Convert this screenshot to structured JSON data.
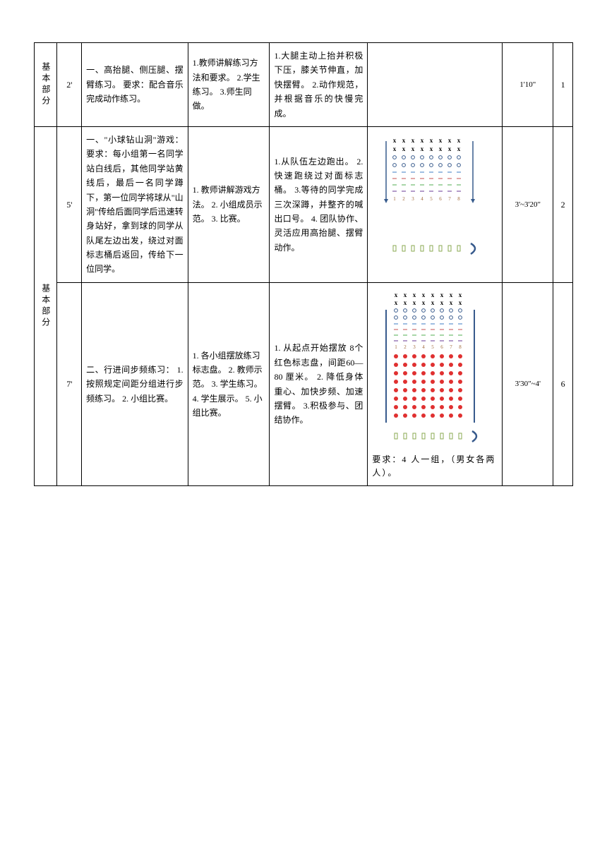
{
  "rows": [
    {
      "label": "基本部分",
      "time": "2'",
      "content": "一、高抬腿、侧压腿、摆臂练习。\n要求：配合音乐完成动作练习。",
      "method": "1.教师讲解练习方法和要求。\n2.学生练习。\n3.师生同做。",
      "requirement": "1.大腿主动上抬并积极下压，膝关节伸直，加快摆臂。\n2.动作规范，并根据音乐的快慢完成。",
      "diagram_note": "",
      "duration": "1'10\"",
      "count": "1"
    },
    {
      "label": "基本部分",
      "time": "5'",
      "content": "一、\"小球钻山洞\"游戏：\n要求：每小组第一名同学站白线后，其他同学站黄线后，最后一名同学蹲下，第一位同学将球从\"山洞\"传给后面同学后迅速转身站好，拿到球的同学从队尾左边出发，绕过对面标志桶后返回，传给下一位同学。",
      "method": "1. 教师讲解游戏方法。\n2. 小组成员示范。\n3. 比赛。",
      "requirement": "1.从队伍左边跑出。\n2.快速跑绕过对面标志桶。\n3.等待的同学完成三次深蹲，并整齐的喊出口号。\n4. 团队协作、灵活应用高抬腿、摆臂动作。",
      "diagram_note": "",
      "duration": "3'~3'20\"",
      "count": "2"
    },
    {
      "label": "",
      "time": "7'",
      "content": "二、行进间步频练习：\n1. 按照规定间距分组进行步频练习。\n2. 小组比赛。",
      "method": "1. 各小组摆放练习标志盘。\n2. 教师示范。\n3. 学生练习。\n4. 学生展示。\n5. 小组比赛。",
      "requirement": "1. 从起点开始摆放 8个红色标志盘，间距60—80 厘米。\n2. 降低身体重心、加快步频、加速摆臂。\n3.积极参与、团结协作。",
      "diagram_note": "要求：4 人一组，（男女各两人）。",
      "duration": "3'30\"~4'",
      "count": "6"
    }
  ],
  "diagrams": {
    "d2": {
      "x_color": "#000000",
      "o_color": "#375a8c",
      "dash_colors": [
        "#7da8d8",
        "#d88a8a",
        "#8ac98a",
        "#9a7ab8"
      ],
      "num_color": "#a06838",
      "arrow_color": "#375a8c",
      "box_color": "#8aa850",
      "curve_color": "#375a8c"
    },
    "d3": {
      "x_color": "#000000",
      "o_color": "#375a8c",
      "dash_colors": [
        "#7da8d8",
        "#d88a8a",
        "#8ac98a",
        "#9a7ab8"
      ],
      "num_color": "#a06838",
      "dot_color": "#e03030",
      "bar_color": "#375a8c",
      "box_color": "#8aa850",
      "curve_color": "#375a8c"
    }
  }
}
